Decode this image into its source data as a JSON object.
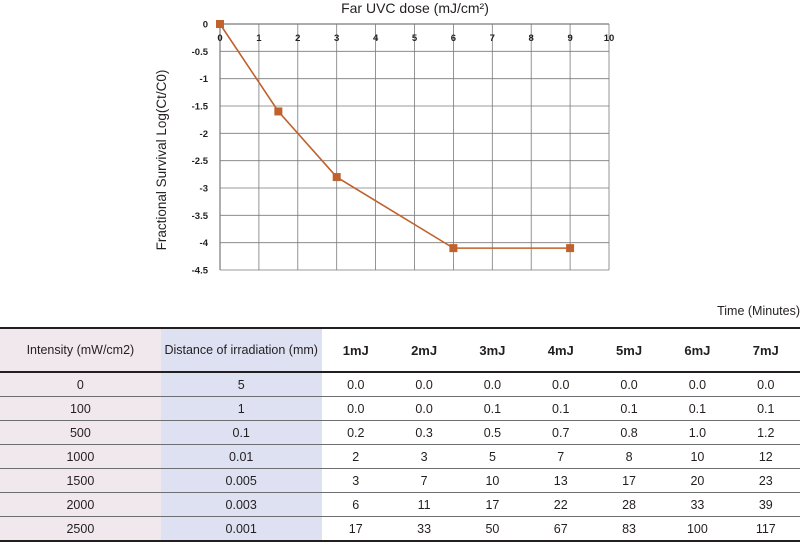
{
  "chart_data": {
    "type": "line",
    "title": "Far UVC dose (mJ/cm²)",
    "ylabel": "Fractional Survival Log(Ct/C0)",
    "xlim": [
      0,
      10
    ],
    "ylim": [
      -4.5,
      0
    ],
    "x_ticks": [
      "0",
      "1",
      "2",
      "3",
      "4",
      "5",
      "6",
      "7",
      "8",
      "9",
      "10"
    ],
    "y_ticks": [
      "0",
      "-0.5",
      "-1",
      "-1.5",
      "-2",
      "-2.5",
      "-3",
      "-3.5",
      "-4",
      "-4.5"
    ],
    "grid": true,
    "series": [
      {
        "x": [
          0,
          1.5,
          3,
          6,
          9
        ],
        "y": [
          0,
          -1.6,
          -2.8,
          -4.1,
          -4.1
        ]
      }
    ],
    "colors": {
      "line": "#c0622d",
      "marker": "#c0622d",
      "grid": "#7a7a7a"
    }
  },
  "table": {
    "time_label": "Time (Minutes)",
    "headers": {
      "intensity": "Intensity (mW/cm2)",
      "distance": "Distance of irradiation (mm)",
      "minutes": [
        "1mJ",
        "2mJ",
        "3mJ",
        "4mJ",
        "5mJ",
        "6mJ",
        "7mJ"
      ]
    },
    "rows": [
      {
        "intensity": "0",
        "distance": "5",
        "values": [
          "0.0",
          "0.0",
          "0.0",
          "0.0",
          "0.0",
          "0.0",
          "0.0"
        ]
      },
      {
        "intensity": "100",
        "distance": "1",
        "values": [
          "0.0",
          "0.0",
          "0.1",
          "0.1",
          "0.1",
          "0.1",
          "0.1"
        ]
      },
      {
        "intensity": "500",
        "distance": "0.1",
        "values": [
          "0.2",
          "0.3",
          "0.5",
          "0.7",
          "0.8",
          "1.0",
          "1.2"
        ]
      },
      {
        "intensity": "1000",
        "distance": "0.01",
        "values": [
          "2",
          "3",
          "5",
          "7",
          "8",
          "10",
          "12"
        ]
      },
      {
        "intensity": "1500",
        "distance": "0.005",
        "values": [
          "3",
          "7",
          "10",
          "13",
          "17",
          "20",
          "23"
        ]
      },
      {
        "intensity": "2000",
        "distance": "0.003",
        "values": [
          "6",
          "11",
          "17",
          "22",
          "28",
          "33",
          "39"
        ]
      },
      {
        "intensity": "2500",
        "distance": "0.001",
        "values": [
          "17",
          "33",
          "50",
          "67",
          "83",
          "100",
          "117"
        ]
      }
    ],
    "colors": {
      "intensity_bg": "#f1e8ee",
      "distance_bg": "#dde1f2"
    }
  }
}
